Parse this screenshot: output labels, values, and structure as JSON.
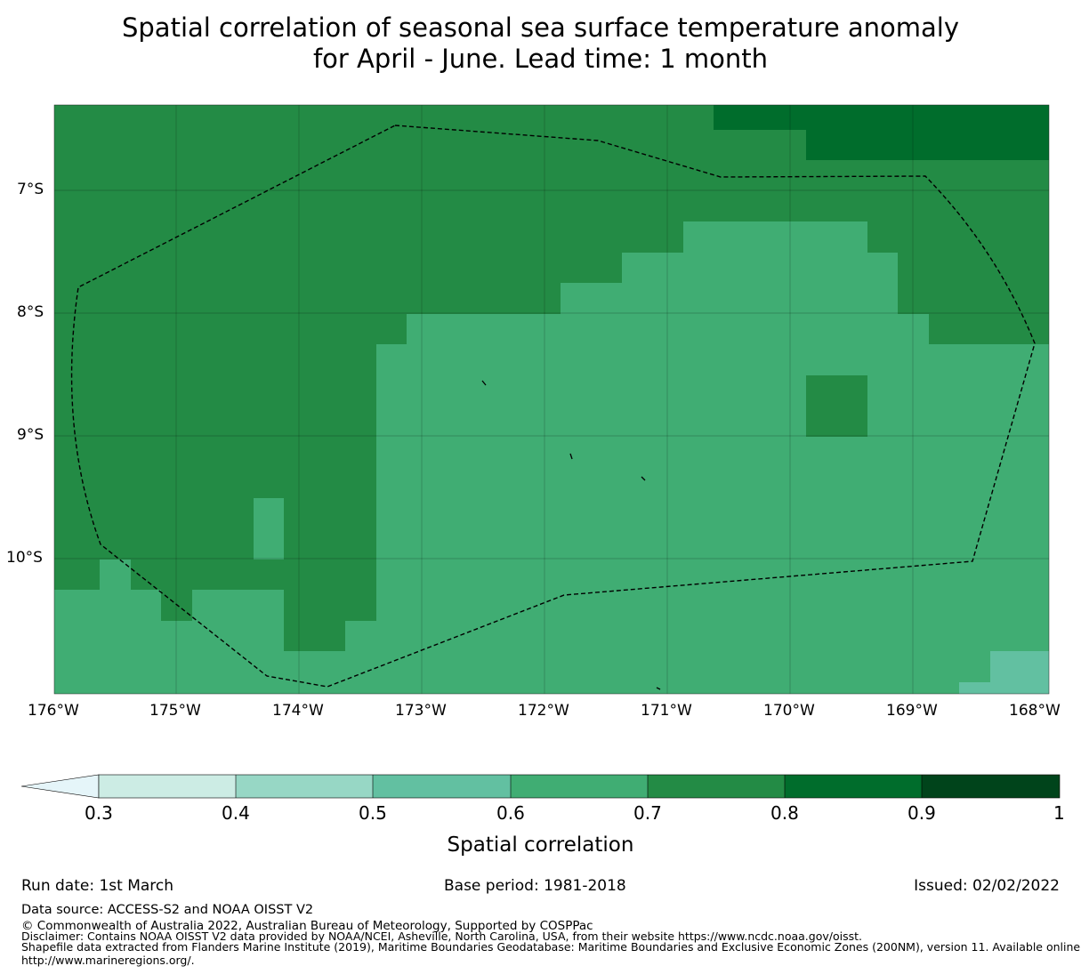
{
  "title": {
    "line1": "Spatial correlation of seasonal sea surface temperature anomaly",
    "line2": "for April - June. Lead time: 1 month"
  },
  "map": {
    "lat_labels": [
      "7°S",
      "8°S",
      "9°S",
      "10°S"
    ],
    "lon_labels": [
      "176°W",
      "175°W",
      "174°W",
      "173°W",
      "172°W",
      "171°W",
      "170°W",
      "169°W",
      "168°W"
    ],
    "region": "EEZ boundary (dashed)"
  },
  "colorbar": {
    "label": "Spatial correlation",
    "ticks": [
      "0.3",
      "0.4",
      "0.5",
      "0.6",
      "0.7",
      "0.8",
      "0.9",
      "1"
    ],
    "colors": [
      "#ccece4",
      "#97d7c5",
      "#62c0a1",
      "#40ad73",
      "#238b45",
      "#006d2c",
      "#00441b"
    ],
    "extend_color": "#e5f5f9"
  },
  "colors": {
    "c06": "#40ad73",
    "c07": "#238b45",
    "c08": "#006d2c",
    "c05": "#62c0a1"
  },
  "footer": {
    "run_date": "Run date: 1st March",
    "base_period": "Base period: 1981-2018",
    "issued": "Issued: 02/02/2022",
    "data_source": "Data source: ACCESS-S2 and NOAA OISST V2",
    "copyright": "© Commonwealth of Australia 2022, Australian Bureau of Meteorology, Supported by COSPPac",
    "disclaimer": "Disclaimer: Contains NOAA OISST V2 data provided by NOAA/NCEI, Asheville, North Carolina, USA, from their website https://www.ncdc.noaa.gov/oisst.",
    "shapefile_1": "Shapefile data extracted from Flanders Marine Institute (2019), Maritime Boundaries Geodatabase: Maritime Boundaries and Exclusive Economic Zones (200NM), version 11. Available online at",
    "shapefile_2": "http://www.marineregions.org/."
  }
}
